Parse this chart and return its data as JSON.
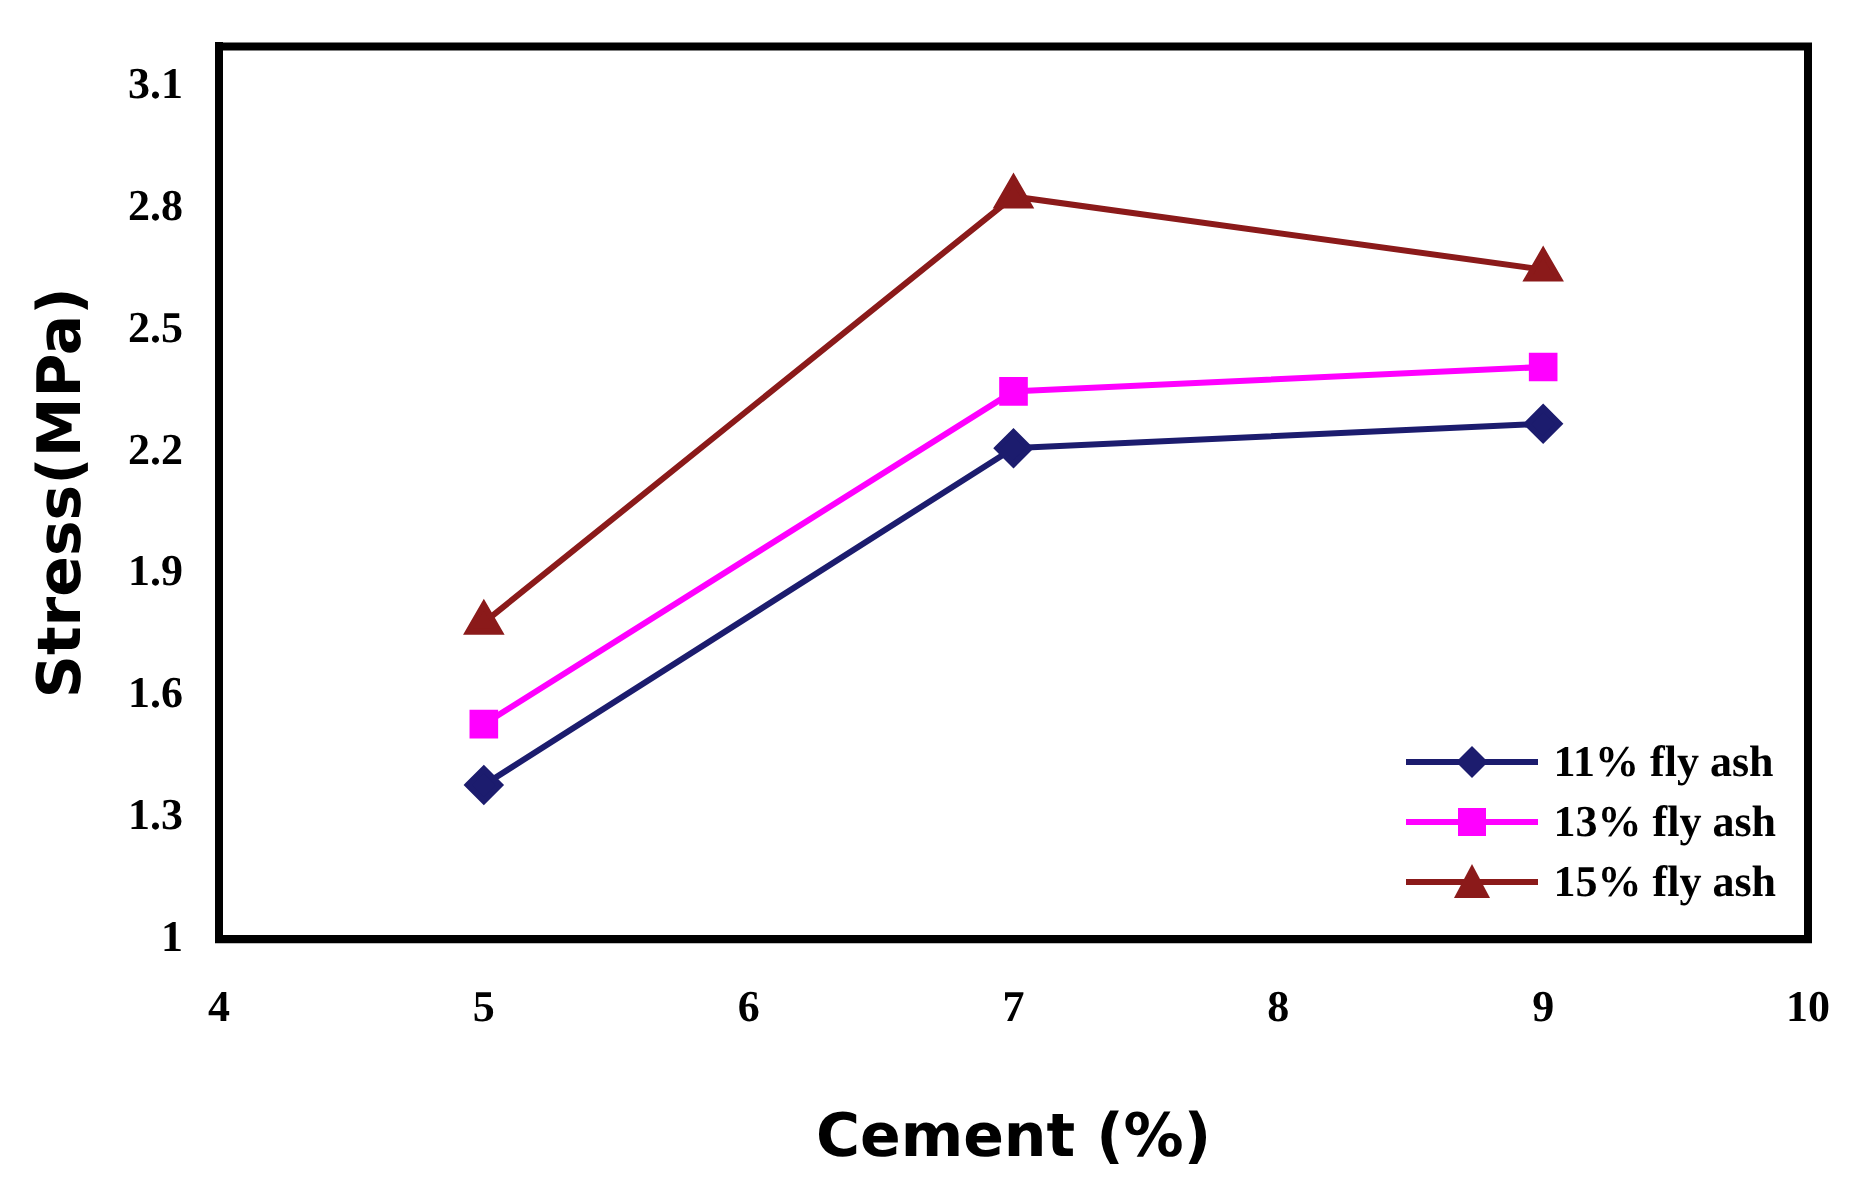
{
  "chart_data": {
    "type": "line",
    "xlabel": "Cement (%)",
    "ylabel": "Stress(MPa)",
    "x": [
      5,
      7,
      9
    ],
    "series": [
      {
        "name": "11% fly ash",
        "color": "#1c1c6e",
        "values": [
          1.38,
          2.21,
          2.27
        ],
        "marker": "diamond"
      },
      {
        "name": "13% fly ash",
        "color": "#ff00ff",
        "values": [
          1.53,
          2.35,
          2.41
        ],
        "marker": "square"
      },
      {
        "name": "15% fly ash",
        "color": "#8b1a1a",
        "values": [
          1.78,
          2.83,
          2.65
        ],
        "marker": "triangle"
      }
    ],
    "xlim": [
      4,
      10
    ],
    "xticks": [
      4,
      5,
      6,
      7,
      8,
      9,
      10
    ],
    "ylim": [
      1,
      3.2
    ],
    "yticks": [
      1,
      1.3,
      1.6,
      1.9,
      2.2,
      2.5,
      2.8,
      3.1
    ],
    "grid": false,
    "legend": "bottom right",
    "line_style": "solid"
  }
}
